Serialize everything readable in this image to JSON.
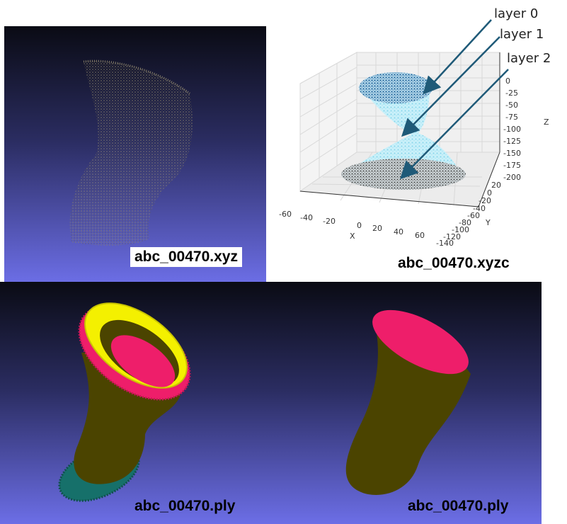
{
  "panels": {
    "xyz": {
      "caption": "abc_00470.xyz"
    },
    "xyzc": {
      "caption": "abc_00470.xyzc",
      "layers": [
        "layer 0",
        "layer 1",
        "layer 2"
      ],
      "x_axis": {
        "label": "X",
        "ticks": [
          "-60",
          "-40",
          "-20",
          "0",
          "20",
          "40",
          "60"
        ]
      },
      "y_axis": {
        "label": "Y",
        "ticks": [
          "20",
          "0",
          "-20",
          "-40",
          "-60",
          "-80",
          "-100",
          "-120",
          "-140"
        ]
      },
      "z_axis": {
        "label": "Z",
        "ticks": [
          "0",
          "-25",
          "-50",
          "-75",
          "-100",
          "-125",
          "-150",
          "-175",
          "-200"
        ]
      }
    },
    "ply_left": {
      "caption": "abc_00470.ply"
    },
    "ply_right": {
      "caption": "abc_00470.ply"
    }
  },
  "colors": {
    "body": "#4b4400",
    "magenta": "#ee1e6a",
    "yellow": "#f4f000",
    "teal": "#16706a",
    "layer0": "#2d6fa3",
    "layer1": "#8fdbee",
    "layer2": "#555555",
    "arrow": "#1f5a78"
  }
}
